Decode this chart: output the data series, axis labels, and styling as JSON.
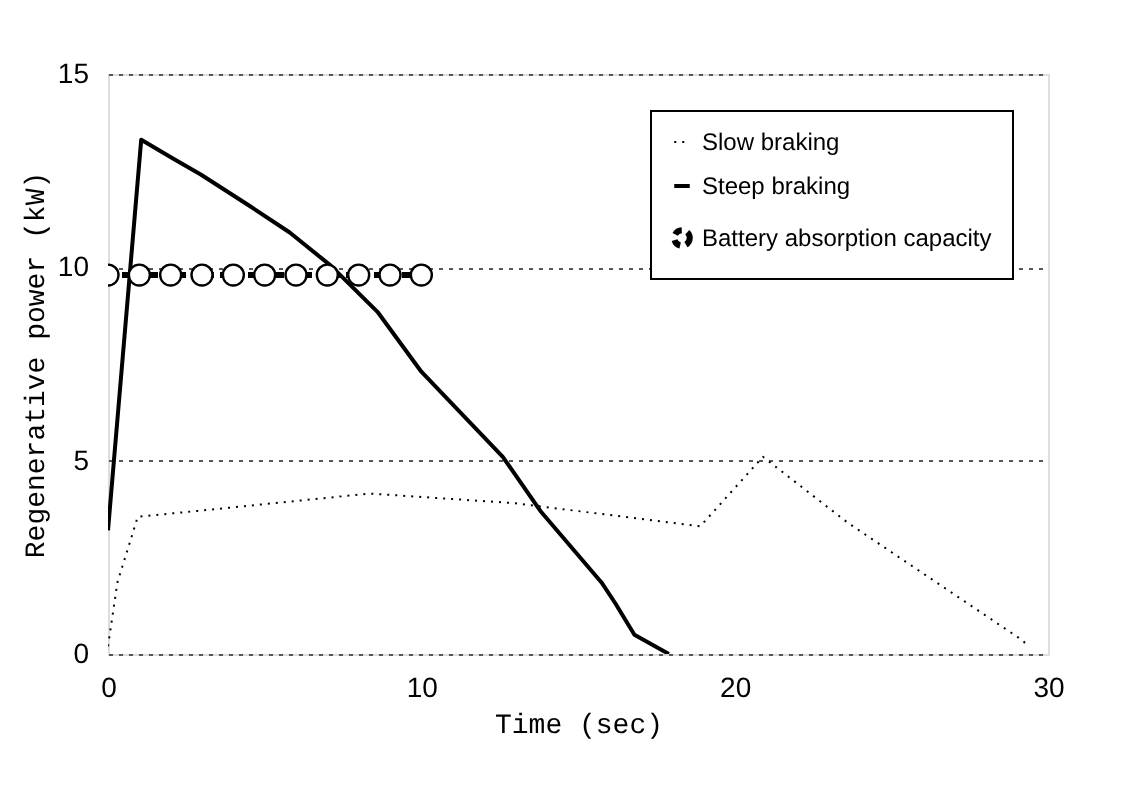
{
  "chart_data": {
    "type": "line",
    "xlabel": "Time (sec)",
    "ylabel": "Regenerative power (kW)",
    "xlim": [
      0,
      30
    ],
    "ylim": [
      0,
      15
    ],
    "xticks": [
      0,
      10,
      20,
      30
    ],
    "yticks": [
      0,
      5,
      10,
      15
    ],
    "grid": "y",
    "legend": "top right",
    "series": [
      {
        "name": "Slow braking",
        "color": "#000000",
        "line_style": "dotted",
        "marker": "none",
        "x": [
          0,
          0.3,
          0.95,
          2.85,
          8.35,
          13,
          18.9,
          20.9,
          23.6,
          29.1,
          29.4
        ],
        "values": [
          0.2,
          1.85,
          3.55,
          3.7,
          4.15,
          3.9,
          3.3,
          5.1,
          3.4,
          0.4,
          0.2
        ]
      },
      {
        "name": "Steep braking",
        "color": "#000000",
        "line_style": "solid",
        "marker": "none",
        "x": [
          0,
          1.06,
          2.1,
          2.96,
          4.5,
          5.8,
          7.1,
          8.6,
          10,
          12.6,
          13.8,
          15.75,
          16.2,
          16.8,
          17.9
        ],
        "values": [
          3.2,
          13.3,
          12.8,
          12.4,
          11.6,
          10.9,
          10.05,
          8.85,
          7.3,
          5.1,
          3.7,
          1.85,
          1.3,
          0.5,
          0
        ]
      },
      {
        "name": "Battery absorption capacity",
        "color": "#000000",
        "line_style": "dashed",
        "marker": "circle",
        "x": [
          0,
          1,
          2,
          3,
          4,
          5,
          6,
          7,
          8,
          9,
          10
        ],
        "values": [
          9.8,
          9.8,
          9.8,
          9.8,
          9.8,
          9.8,
          9.8,
          9.8,
          9.8,
          9.8,
          9.8
        ]
      }
    ]
  }
}
